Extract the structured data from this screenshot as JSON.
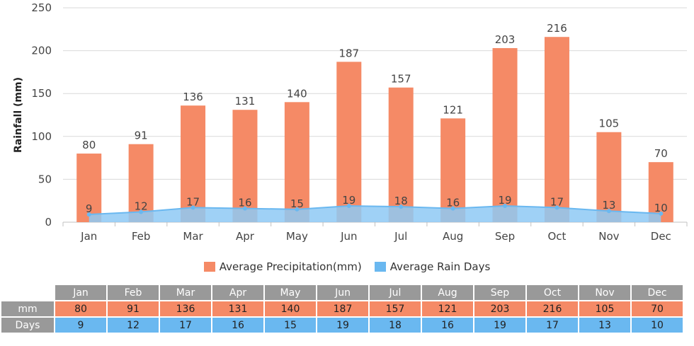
{
  "chart_data": {
    "type": "bar",
    "ylabel": "Rainfall (mm)",
    "ylim": [
      0,
      250
    ],
    "yticks": [
      0,
      50,
      100,
      150,
      200,
      250
    ],
    "grid": true,
    "legend_position": "bottom",
    "categories": [
      "Jan",
      "Feb",
      "Mar",
      "Apr",
      "May",
      "Jun",
      "Jul",
      "Aug",
      "Sep",
      "Oct",
      "Nov",
      "Dec"
    ],
    "series": [
      {
        "name": "Average Precipitation(mm)",
        "type": "bar",
        "color": "#f58a66",
        "values": [
          80,
          91,
          136,
          131,
          140,
          187,
          157,
          121,
          203,
          216,
          105,
          70
        ]
      },
      {
        "name": "Average Rain Days",
        "type": "area",
        "color": "#6ab8f0",
        "values": [
          9,
          12,
          17,
          16,
          15,
          19,
          18,
          16,
          19,
          17,
          13,
          10
        ]
      }
    ]
  },
  "legend": {
    "precip_label": "Average Precipitation(mm)",
    "days_label": "Average Rain Days"
  },
  "table": {
    "row_mm_label": "mm",
    "row_days_label": "Days"
  },
  "colors": {
    "bar": "#f58a66",
    "area_fill": "#8ec9f5",
    "area_line": "#6ab8f0",
    "grid": "#d9d9d9",
    "header_bg": "#999999"
  }
}
